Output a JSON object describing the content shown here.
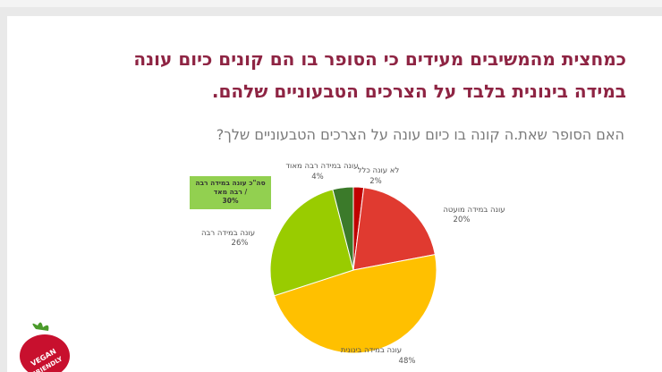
{
  "chart_data": {
    "type": "pie",
    "title_lines": [
      "כמחצית מהמשיבים מעידים כי הסופר בו הם קונים כיום עונה",
      "במידה בינונית בלבד על הצרכים הטבעוניים שלהם."
    ],
    "subtitle": "האם הסופר שאת.ה קונה בו כיום עונה על הצרכים הטבעוניים שלך?",
    "categories": [
      "לא עונה כלל",
      "עונה במידה מועטה",
      "עונה במידה בינונית",
      "עונה במידה רבה",
      "עונה במידה רבה מאוד"
    ],
    "values": [
      2,
      20,
      48,
      26,
      4
    ],
    "value_labels": [
      "2%",
      "20%",
      "48%",
      "26%",
      "4%"
    ],
    "colors": [
      "#c00000",
      "#e03a30",
      "#ffc000",
      "#99cc00",
      "#3b7a2a"
    ],
    "annotation_lines": [
      "סה\"כ עונה במידה רבה",
      "/ רבה מאד",
      "30%"
    ]
  },
  "logo": {
    "lines": [
      "VEGAN",
      "FRIENDLY"
    ]
  }
}
